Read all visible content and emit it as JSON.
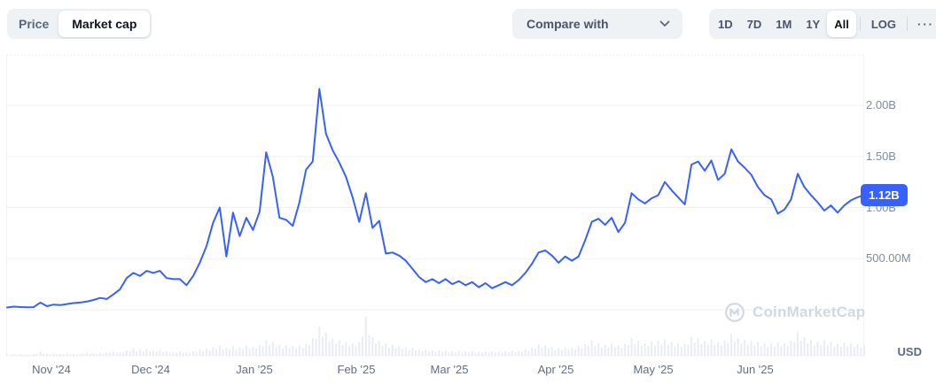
{
  "header": {
    "metric_toggle": {
      "options": [
        "Price",
        "Market cap"
      ],
      "active": "Market cap"
    },
    "compare": {
      "label": "Compare with"
    },
    "ranges": {
      "options": [
        "1D",
        "7D",
        "1M",
        "1Y",
        "All"
      ],
      "active": "All",
      "log_label": "LOG",
      "more_label": "···"
    }
  },
  "chart": {
    "current_value_label": "1.12B",
    "unit_label": "USD",
    "watermark": "CoinMarketCap",
    "colors": {
      "line": "#3861fb",
      "badge_bg": "#3861fb",
      "badge_text": "#ffffff",
      "grid": "#f0f2f6",
      "grid_dashed": "#dfe4ec",
      "volume": "#e9edf3",
      "watermark": "#d2d8e3",
      "axis_y_text": "#7f8b9f",
      "axis_x_text": "#616e85"
    }
  },
  "chart_data": {
    "type": "line",
    "title": "Market cap",
    "unit": "USD",
    "active_range": "All",
    "scale": "linear",
    "start_date": "2024-10-20",
    "step_days": 2,
    "x_tick_labels": [
      "Nov '24",
      "Dec '24",
      "Jan '25",
      "Feb '25",
      "Mar '25",
      "Apr '25",
      "May '25",
      "Jun '25"
    ],
    "y_tick_labels": [
      "2.00B",
      "1.50B",
      "1.00B",
      "500.00M"
    ],
    "y_tick_values_b": [
      2.0,
      1.5,
      1.0,
      0.5
    ],
    "ylim_b": [
      0,
      2.5
    ],
    "grid": "horizontal",
    "legend": "none",
    "current_value_b": 1.12,
    "peak_value_b": 2.16,
    "series": [
      {
        "name": "Market cap (billions USD)",
        "values": [
          0.022,
          0.03,
          0.026,
          0.024,
          0.025,
          0.07,
          0.035,
          0.05,
          0.045,
          0.055,
          0.065,
          0.07,
          0.08,
          0.095,
          0.115,
          0.105,
          0.15,
          0.2,
          0.31,
          0.36,
          0.33,
          0.38,
          0.36,
          0.38,
          0.31,
          0.3,
          0.3,
          0.24,
          0.33,
          0.46,
          0.62,
          0.85,
          1.0,
          0.52,
          0.95,
          0.72,
          0.9,
          0.78,
          0.96,
          1.54,
          1.3,
          0.9,
          0.88,
          0.82,
          1.05,
          1.37,
          1.45,
          2.16,
          1.72,
          1.56,
          1.44,
          1.3,
          1.1,
          0.86,
          1.14,
          0.8,
          0.87,
          0.55,
          0.56,
          0.53,
          0.48,
          0.4,
          0.32,
          0.27,
          0.3,
          0.26,
          0.3,
          0.25,
          0.28,
          0.24,
          0.27,
          0.22,
          0.26,
          0.21,
          0.24,
          0.27,
          0.24,
          0.29,
          0.36,
          0.45,
          0.56,
          0.58,
          0.53,
          0.46,
          0.52,
          0.48,
          0.52,
          0.68,
          0.86,
          0.89,
          0.83,
          0.9,
          0.76,
          0.85,
          1.14,
          1.08,
          1.04,
          1.09,
          1.12,
          1.25,
          1.17,
          1.1,
          1.03,
          1.42,
          1.45,
          1.36,
          1.46,
          1.27,
          1.33,
          1.57,
          1.45,
          1.39,
          1.32,
          1.2,
          1.12,
          1.08,
          0.94,
          0.98,
          1.08,
          1.33,
          1.2,
          1.12,
          1.05,
          0.97,
          1.02,
          0.95,
          1.02,
          1.07,
          1.1,
          1.12
        ]
      },
      {
        "name": "Volume (relative)",
        "values": [
          0.04,
          0.05,
          0.04,
          0.03,
          0.04,
          0.1,
          0.05,
          0.06,
          0.05,
          0.06,
          0.05,
          0.06,
          0.07,
          0.06,
          0.08,
          0.09,
          0.11,
          0.09,
          0.14,
          0.18,
          0.15,
          0.17,
          0.14,
          0.16,
          0.12,
          0.1,
          0.11,
          0.09,
          0.12,
          0.15,
          0.18,
          0.22,
          0.26,
          0.2,
          0.24,
          0.21,
          0.26,
          0.23,
          0.28,
          0.4,
          0.35,
          0.28,
          0.26,
          0.24,
          0.26,
          0.3,
          0.45,
          0.75,
          0.6,
          0.45,
          0.4,
          0.35,
          0.32,
          0.36,
          1.0,
          0.48,
          0.38,
          0.32,
          0.28,
          0.24,
          0.22,
          0.2,
          0.17,
          0.15,
          0.13,
          0.14,
          0.13,
          0.12,
          0.12,
          0.11,
          0.12,
          0.1,
          0.11,
          0.1,
          0.11,
          0.12,
          0.13,
          0.12,
          0.16,
          0.2,
          0.3,
          0.28,
          0.22,
          0.2,
          0.22,
          0.2,
          0.24,
          0.3,
          0.38,
          0.32,
          0.28,
          0.32,
          0.26,
          0.3,
          0.45,
          0.38,
          0.32,
          0.36,
          0.38,
          0.42,
          0.36,
          0.32,
          0.3,
          0.48,
          0.45,
          0.38,
          0.42,
          0.35,
          0.38,
          0.55,
          0.45,
          0.4,
          0.38,
          0.35,
          0.32,
          0.3,
          0.35,
          0.32,
          0.38,
          0.6,
          0.48,
          0.4,
          0.36,
          0.4,
          0.35,
          0.3,
          0.34,
          0.32,
          0.3,
          0.28
        ]
      }
    ]
  }
}
